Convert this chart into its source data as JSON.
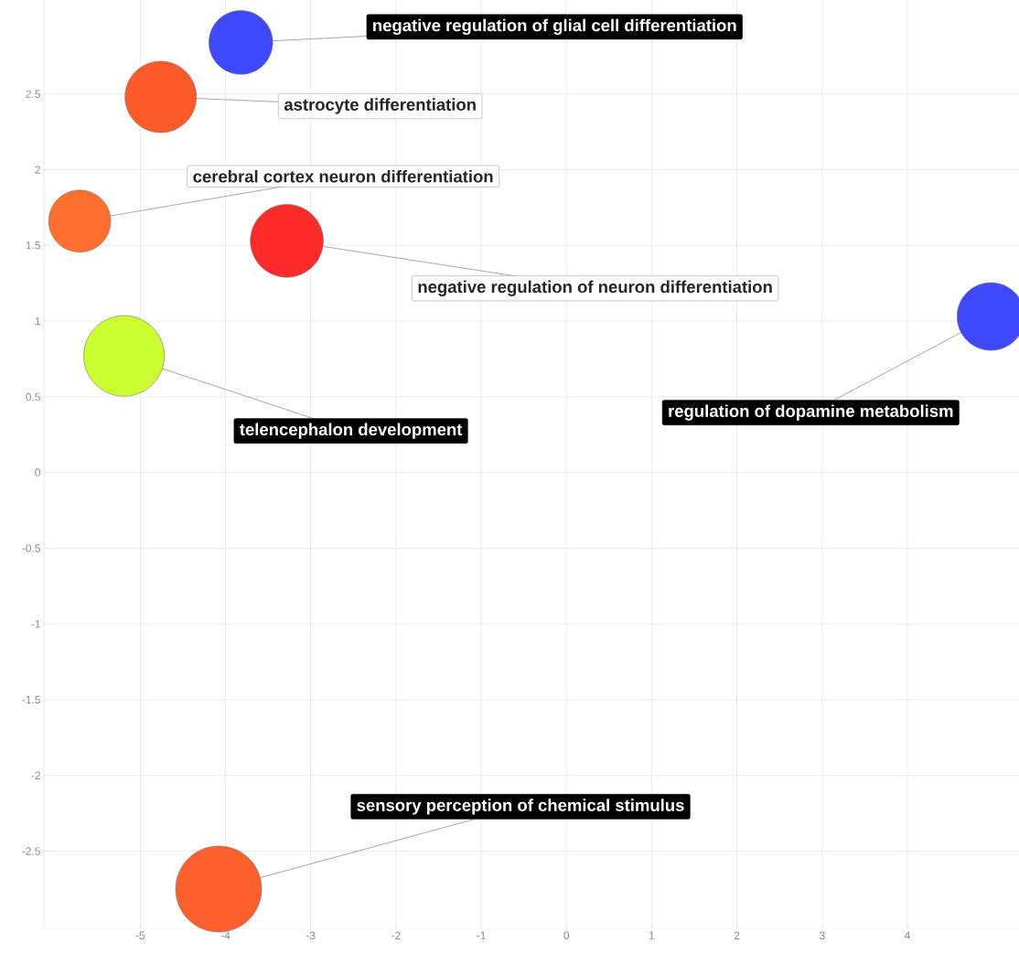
{
  "chart_data": {
    "type": "bubble",
    "marker": "circle",
    "grid": true,
    "x": [
      -3.82,
      -4.76,
      -5.71,
      -3.28,
      -5.19,
      4.98,
      -4.08
    ],
    "values": [
      2.84,
      2.48,
      1.66,
      1.53,
      0.77,
      1.03,
      -2.75
    ],
    "sizes": [
      0.55,
      0.69,
      0.52,
      0.72,
      0.88,
      0.62,
      1
    ],
    "colors": [
      "#3f48fb",
      "#ff5a2a",
      "#ff7030",
      "#ff2b2b",
      "#ccff2f",
      "#3f48fb",
      "#ff6030"
    ],
    "xlim": [
      -6.13,
      5.31
    ],
    "ylim": [
      -3.01,
      3.12
    ],
    "xticks": [
      -5,
      -4,
      -3,
      -2,
      -1,
      0,
      1,
      2,
      3,
      4
    ],
    "yticks": [
      -2.5,
      -2,
      -1.5,
      -1,
      -0.5,
      0,
      0.5,
      1,
      1.5,
      2,
      2.5
    ],
    "annotations": [
      {
        "text": "negative regulation of glial cell differentiation",
        "x": -3.82,
        "y": 2.84
      },
      {
        "text": "astrocyte differentiation",
        "x": -4.76,
        "y": 2.48
      },
      {
        "text": "cerebral cortex neuron differentiation",
        "x": -5.71,
        "y": 1.66
      },
      {
        "text": "negative regulation of neuron differentiation",
        "x": -3.28,
        "y": 1.53
      },
      {
        "text": "telencephalon development",
        "x": -5.19,
        "y": 0.77
      },
      {
        "text": "regulation of dopamine metabolism",
        "x": 4.98,
        "y": 1.03
      },
      {
        "text": "sensory perception of chemical stimulus",
        "x": -4.08,
        "y": -2.75
      }
    ]
  }
}
